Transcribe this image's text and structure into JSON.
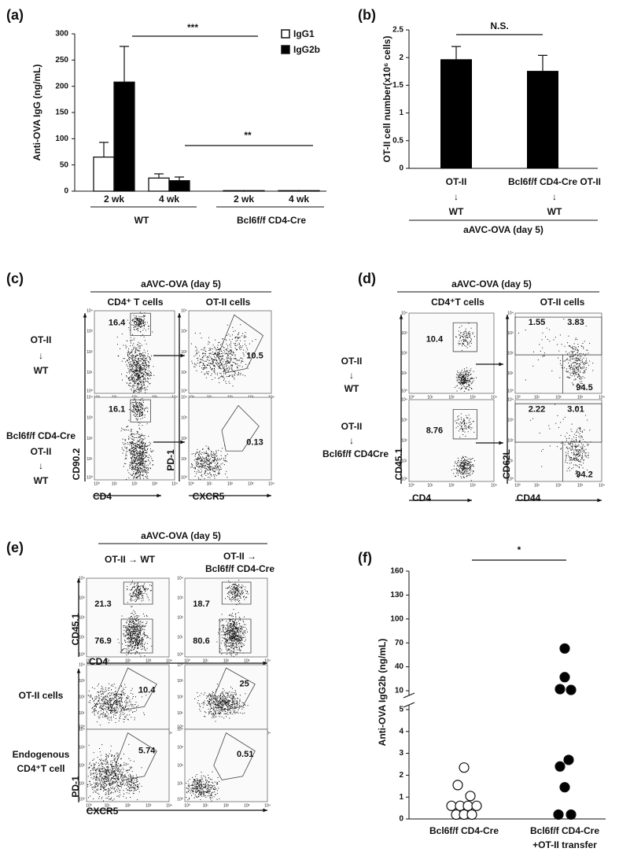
{
  "chart_data": [
    {
      "type": "bar",
      "panel": "(a)",
      "ylabel": "Anti-OVA IgG (ng/mL)",
      "categories": [
        "2 wk",
        "4 wk",
        "2 wk",
        "4 wk"
      ],
      "groups": [
        "WT",
        "Bcl6f/f CD4-Cre"
      ],
      "series": [
        {
          "name": "IgG1",
          "color": "#ffffff",
          "values": [
            65,
            25,
            1,
            1
          ],
          "errors": [
            28,
            8,
            0,
            0
          ]
        },
        {
          "name": "IgG2b",
          "color": "#000000",
          "values": [
            208,
            20,
            1,
            1
          ],
          "errors": [
            68,
            7,
            0,
            0
          ]
        }
      ],
      "ylim": [
        0,
        300
      ],
      "yticks": [
        0,
        50,
        100,
        150,
        200,
        250,
        300
      ],
      "annotations": [
        "***",
        "**"
      ]
    },
    {
      "type": "bar",
      "panel": "(b)",
      "ylabel": "OT-II cell number(x10⁶ cells)",
      "categories": [
        [
          "OT-II",
          "↓",
          "WT"
        ],
        [
          "Bcl6f/f CD4-Cre OT-II",
          "↓",
          "WT"
        ]
      ],
      "group": "aAVC-OVA (day 5)",
      "series": [
        {
          "color": "#000000",
          "values": [
            1.97,
            1.76
          ],
          "errors": [
            0.23,
            0.28
          ]
        }
      ],
      "ylim": [
        0,
        2.5
      ],
      "yticks": [
        0,
        0.5,
        1,
        1.5,
        2,
        2.5
      ],
      "annotations": [
        "N.S."
      ]
    },
    {
      "type": "scatter",
      "panel": "(f)",
      "ylabel": "Anti-OVA IgG2b (ng/mL)",
      "categories": [
        [
          "Bcl6f/f CD4-Cre"
        ],
        [
          "Bcl6f/f CD4-Cre",
          "+OT-II transfer"
        ]
      ],
      "series": [
        {
          "color": "#ffffff",
          "values": [
            2.35,
            1.55,
            1.05,
            0.6,
            0.6,
            0.6,
            0.6,
            0.2,
            0.2,
            0.2
          ]
        },
        {
          "color": "#000000",
          "values": [
            63,
            27,
            12,
            11,
            2.7,
            2.4,
            1.45,
            0.2,
            0.2
          ]
        }
      ],
      "ylim": [
        0,
        160
      ],
      "ybreak": [
        5,
        10
      ],
      "yticks": [
        0,
        1,
        2,
        3,
        4,
        5,
        10,
        40,
        70,
        100,
        130,
        160
      ],
      "annotations": [
        "*"
      ]
    }
  ],
  "flow_ticks": [
    "10⁰",
    "10¹",
    "10²",
    "10³",
    "10⁴"
  ],
  "flow_panels": [
    {
      "panel": "(c)",
      "header": "aAVC-OVA (day 5)",
      "columns": [
        [
          "CD4⁺ T cells"
        ],
        [
          "OT-II cells"
        ]
      ],
      "rows": [
        [
          "OT-II",
          "↓",
          "WT"
        ],
        [
          "Bcl6f/f CD4-Cre",
          "OT-II",
          "↓",
          "WT"
        ]
      ],
      "axes": [
        "CD90.2",
        "CD4",
        "PD-1",
        "CXCR5"
      ],
      "gates": [
        [
          16.4
        ],
        [
          10.5
        ],
        [
          16.1
        ],
        [
          0.13
        ]
      ]
    },
    {
      "panel": "(d)",
      "header": "aAVC-OVA (day 5)",
      "columns": [
        [
          "CD4⁺T cells"
        ],
        [
          "OT-II cells"
        ]
      ],
      "rows": [
        [
          "OT-II",
          "↓",
          "WT"
        ],
        [
          "OT-II",
          "↓",
          "Bcl6f/f CD4Cre"
        ]
      ],
      "axes": [
        "CD45.1",
        "CD4",
        "CD62L",
        "CD44"
      ],
      "gates": [
        [
          10.4
        ],
        [
          1.55,
          3.83,
          94.5
        ],
        [
          8.76
        ],
        [
          2.22,
          3.01,
          94.2
        ]
      ]
    },
    {
      "panel": "(e)",
      "header": "aAVC-OVA (day 5)",
      "columns": [
        [
          "OT-II → WT"
        ],
        [
          "OT-II →",
          "Bcl6f/f CD4-Cre"
        ]
      ],
      "rows": [
        [
          "OT-II cells"
        ],
        [
          "Endogenous",
          "CD4⁺T cell"
        ]
      ],
      "axes": [
        "CD45.1",
        "CD4",
        "PD-1",
        "CXCR5"
      ],
      "gates": [
        [
          21.3,
          76.9
        ],
        [
          18.7,
          80.6
        ],
        [
          10.4
        ],
        [
          25
        ],
        [
          5.74
        ],
        [
          0.51
        ]
      ]
    }
  ]
}
